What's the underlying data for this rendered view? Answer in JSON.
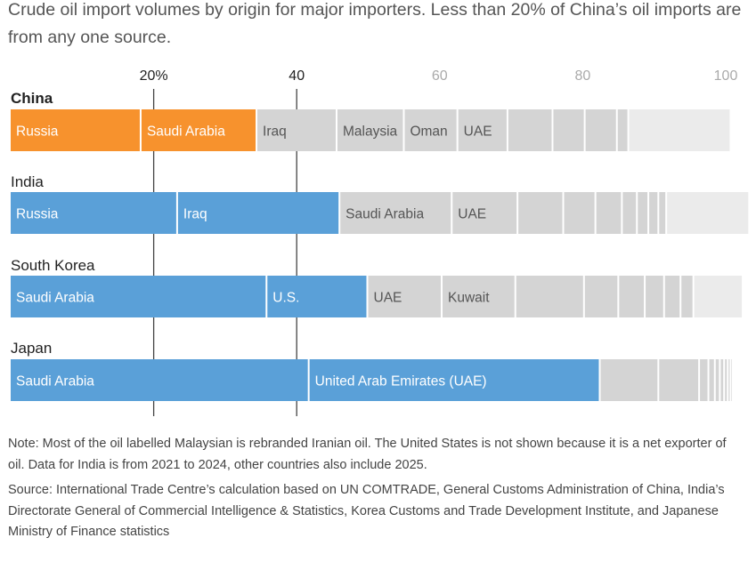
{
  "subtitle": "Crude oil import volumes by origin for major importers. Less than 20% of China’s oil imports are from any one source.",
  "note": "Note: Most of the oil labelled Malaysian is rebranded Iranian oil. The United States is not shown because it is a net exporter of oil. Data for India is from 2021 to 2024, other countries also include 2025.",
  "source": "Source: International Trade Centre’s calculation based on UN COMTRADE, General Customs Administration of China, India’s Directorate General of Commercial Intelligence & Statistics, Korea Customs and Trade Development Institute, and Japanese Ministry of Finance statistics",
  "colors": {
    "china_accent": "#f7922d",
    "highlight": "#5aa0d8",
    "other": "#d4d4d4",
    "remainder": "#ebebeb",
    "reference_line": "#444444",
    "faded_tick": "#aaaaaa"
  },
  "chart_data": {
    "type": "bar",
    "subtype": "stacked-horizontal-100-percent",
    "x_axis": {
      "range": [
        0,
        100
      ],
      "ticks": [
        {
          "value": 20,
          "label": "20%",
          "emphasis": true
        },
        {
          "value": 40,
          "label": "40",
          "emphasis": true
        },
        {
          "value": 60,
          "label": "60",
          "emphasis": false
        },
        {
          "value": 80,
          "label": "80",
          "emphasis": false
        },
        {
          "value": 100,
          "label": "100",
          "emphasis": false
        }
      ],
      "reference_lines": [
        20,
        40
      ]
    },
    "grid": false,
    "legend": "none",
    "countries": [
      {
        "name": "China",
        "bold": true,
        "segments": [
          {
            "label": "Russia",
            "value": 18.3,
            "color": "china_accent"
          },
          {
            "label": "Saudi Arabia",
            "value": 16.2,
            "color": "china_accent"
          },
          {
            "label": "Iraq",
            "value": 11.2,
            "color": "other"
          },
          {
            "label": "Malaysia",
            "value": 9.4,
            "color": "other"
          },
          {
            "label": "Oman",
            "value": 7.5,
            "color": "other"
          },
          {
            "label": "UAE",
            "value": 7.0,
            "color": "other"
          },
          {
            "label": "",
            "value": 6.3,
            "color": "other"
          },
          {
            "label": "",
            "value": 4.5,
            "color": "other"
          },
          {
            "label": "",
            "value": 4.5,
            "color": "other"
          },
          {
            "label": "",
            "value": 1.6,
            "color": "other"
          },
          {
            "label": "",
            "value": 14.3,
            "color": "remainder"
          }
        ]
      },
      {
        "name": "India",
        "bold": false,
        "segments": [
          {
            "label": "Russia",
            "value": 23.4,
            "color": "highlight"
          },
          {
            "label": "Iraq",
            "value": 22.7,
            "color": "highlight"
          },
          {
            "label": "Saudi Arabia",
            "value": 15.7,
            "color": "other"
          },
          {
            "label": "UAE",
            "value": 9.2,
            "color": "other"
          },
          {
            "label": "",
            "value": 6.4,
            "color": "other"
          },
          {
            "label": "",
            "value": 4.5,
            "color": "other"
          },
          {
            "label": "",
            "value": 3.7,
            "color": "other"
          },
          {
            "label": "",
            "value": 2.1,
            "color": "other"
          },
          {
            "label": "",
            "value": 1.6,
            "color": "other"
          },
          {
            "label": "",
            "value": 1.4,
            "color": "other"
          },
          {
            "label": "",
            "value": 1.1,
            "color": "other"
          },
          {
            "label": "",
            "value": 11.6,
            "color": "remainder"
          }
        ]
      },
      {
        "name": "South Korea",
        "bold": false,
        "segments": [
          {
            "label": "Saudi Arabia",
            "value": 35.9,
            "color": "highlight"
          },
          {
            "label": "U.S.",
            "value": 14.1,
            "color": "highlight"
          },
          {
            "label": "UAE",
            "value": 10.4,
            "color": "other"
          },
          {
            "label": "Kuwait",
            "value": 10.3,
            "color": "other"
          },
          {
            "label": "",
            "value": 9.6,
            "color": "other"
          },
          {
            "label": "",
            "value": 4.8,
            "color": "other"
          },
          {
            "label": "",
            "value": 3.7,
            "color": "other"
          },
          {
            "label": "",
            "value": 2.7,
            "color": "other"
          },
          {
            "label": "",
            "value": 2.3,
            "color": "other"
          },
          {
            "label": "",
            "value": 1.8,
            "color": "other"
          },
          {
            "label": "",
            "value": 6.9,
            "color": "remainder"
          }
        ]
      },
      {
        "name": "Japan",
        "bold": false,
        "segments": [
          {
            "label": "Saudi Arabia",
            "value": 41.8,
            "color": "highlight"
          },
          {
            "label": "United Arab Emirates (UAE)",
            "value": 40.7,
            "color": "highlight"
          },
          {
            "label": "",
            "value": 8.2,
            "color": "other"
          },
          {
            "label": "",
            "value": 5.7,
            "color": "other"
          },
          {
            "label": "",
            "value": 1.3,
            "color": "other"
          },
          {
            "label": "",
            "value": 0.9,
            "color": "other"
          },
          {
            "label": "",
            "value": 0.7,
            "color": "other"
          },
          {
            "label": "",
            "value": 0.6,
            "color": "other"
          },
          {
            "label": "",
            "value": 0.5,
            "color": "other"
          },
          {
            "label": "",
            "value": 0.4,
            "color": "other"
          },
          {
            "label": "",
            "value": 0.2,
            "color": "other"
          }
        ]
      }
    ]
  }
}
